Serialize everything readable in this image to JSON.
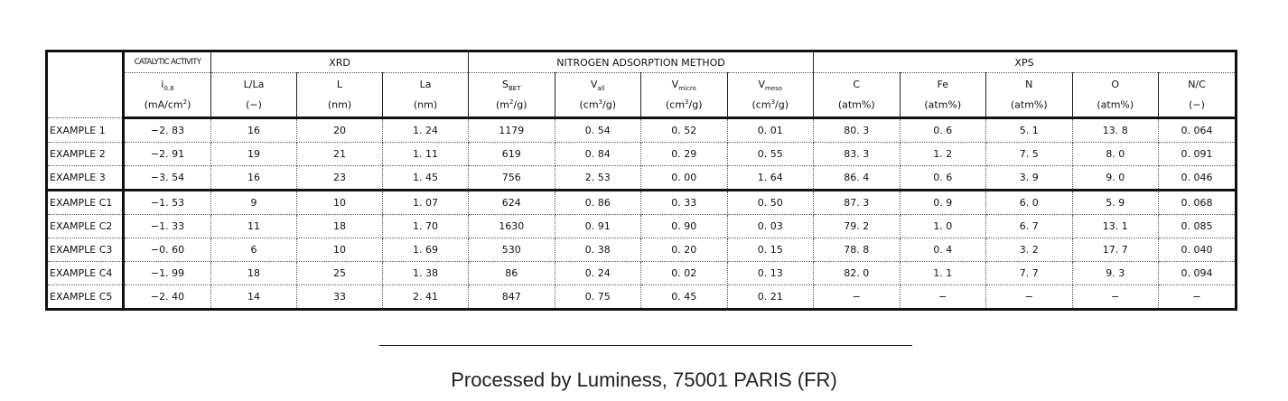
{
  "groups": {
    "catalytic": "CATALYTIC ACTIVITY",
    "xrd": "XRD",
    "nitrogen": "NITROGEN ADSORPTION METHOD",
    "xps": "XPS"
  },
  "columns": [
    {
      "sym": "i",
      "sub": "0.8",
      "unit": "(mA/cm",
      "sup": "2",
      "unit_end": ")"
    },
    {
      "sym": "L/La",
      "sub": "",
      "unit": "(−)",
      "sup": "",
      "unit_end": ""
    },
    {
      "sym": "L",
      "sub": "",
      "unit": "(nm)",
      "sup": "",
      "unit_end": ""
    },
    {
      "sym": "La",
      "sub": "",
      "unit": "(nm)",
      "sup": "",
      "unit_end": ""
    },
    {
      "sym": "S",
      "sub": "BET",
      "unit": "(m",
      "sup": "2",
      "unit_end": "/g)"
    },
    {
      "sym": "V",
      "sub": "all",
      "unit": "(cm",
      "sup": "3",
      "unit_end": "/g)"
    },
    {
      "sym": "V",
      "sub": "micro",
      "unit": "(cm",
      "sup": "3",
      "unit_end": "/g)"
    },
    {
      "sym": "V",
      "sub": "meso",
      "unit": "(cm",
      "sup": "3",
      "unit_end": "/g)"
    },
    {
      "sym": "C",
      "sub": "",
      "unit": "(atm%)",
      "sup": "",
      "unit_end": ""
    },
    {
      "sym": "Fe",
      "sub": "",
      "unit": "(atm%)",
      "sup": "",
      "unit_end": ""
    },
    {
      "sym": "N",
      "sub": "",
      "unit": "(atm%)",
      "sup": "",
      "unit_end": ""
    },
    {
      "sym": "O",
      "sub": "",
      "unit": "(atm%)",
      "sup": "",
      "unit_end": ""
    },
    {
      "sym": "N/C",
      "sub": "",
      "unit": "(−)",
      "sup": "",
      "unit_end": ""
    }
  ],
  "rows": [
    {
      "label": "EXAMPLE 1",
      "values": [
        "−2. 83",
        "16",
        "20",
        "1. 24",
        "1179",
        "0. 54",
        "0. 52",
        "0. 01",
        "80. 3",
        "0. 6",
        "5. 1",
        "13. 8",
        "0. 064"
      ]
    },
    {
      "label": "EXAMPLE 2",
      "values": [
        "−2. 91",
        "19",
        "21",
        "1. 11",
        "619",
        "0. 84",
        "0. 29",
        "0. 55",
        "83. 3",
        "1. 2",
        "7. 5",
        "8. 0",
        "0. 091"
      ]
    },
    {
      "label": "EXAMPLE 3",
      "values": [
        "−3. 54",
        "16",
        "23",
        "1. 45",
        "756",
        "2. 53",
        "0. 00",
        "1. 64",
        "86. 4",
        "0. 6",
        "3. 9",
        "9. 0",
        "0. 046"
      ]
    },
    {
      "label": "EXAMPLE C1",
      "values": [
        "−1. 53",
        "9",
        "10",
        "1. 07",
        "624",
        "0. 86",
        "0. 33",
        "0. 50",
        "87. 3",
        "0. 9",
        "6. 0",
        "5. 9",
        "0. 068"
      ]
    },
    {
      "label": "EXAMPLE C2",
      "values": [
        "−1. 33",
        "11",
        "18",
        "1. 70",
        "1630",
        "0. 91",
        "0. 90",
        "0. 03",
        "79. 2",
        "1. 0",
        "6. 7",
        "13. 1",
        "0. 085"
      ]
    },
    {
      "label": "EXAMPLE C3",
      "values": [
        "−0. 60",
        "6",
        "10",
        "1. 69",
        "530",
        "0. 38",
        "0. 20",
        "0. 15",
        "78. 8",
        "0. 4",
        "3. 2",
        "17. 7",
        "0. 040"
      ]
    },
    {
      "label": "EXAMPLE C4",
      "values": [
        "−1. 99",
        "18",
        "25",
        "1. 38",
        "86",
        "0. 24",
        "0. 02",
        "0. 13",
        "82. 0",
        "1. 1",
        "7. 7",
        "9. 3",
        "0. 094"
      ]
    },
    {
      "label": "EXAMPLE C5",
      "values": [
        "−2. 40",
        "14",
        "33",
        "2. 41",
        "847",
        "0. 75",
        "0. 45",
        "0. 21",
        "−",
        "−",
        "−",
        "−",
        "−"
      ]
    }
  ],
  "footer": "Processed by Luminess, 75001 PARIS (FR)"
}
